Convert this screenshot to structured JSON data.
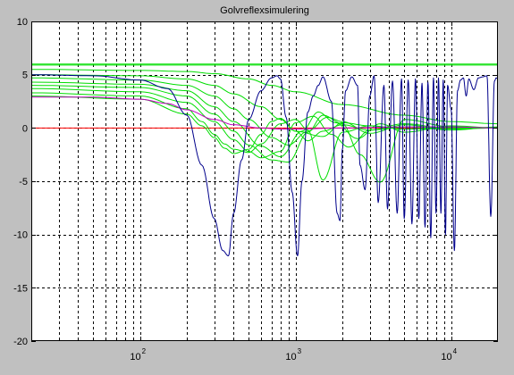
{
  "chart_data": {
    "type": "line",
    "title": "Golvreflexsimulering",
    "xlabel": "",
    "ylabel": "",
    "xscale": "log",
    "xlim": [
      20,
      20000
    ],
    "ylim": [
      -20,
      10
    ],
    "grid": true,
    "background_color": "#c0c0c0",
    "plot_background_color": "#ffffff",
    "x_tick_labels": [
      {
        "base": "10",
        "exp": "2",
        "value": 100
      },
      {
        "base": "10",
        "exp": "3",
        "value": 1000
      },
      {
        "base": "10",
        "exp": "4",
        "value": 10000
      }
    ],
    "y_ticks": [
      10,
      5,
      0,
      -5,
      -10,
      -15,
      -20
    ],
    "y_tick_labels": [
      "10",
      "5",
      "0",
      "-5",
      "-10",
      "-15",
      "-20"
    ],
    "reference_line": {
      "color": "#ff0000",
      "x": [
        20,
        20000
      ],
      "y": [
        0,
        0
      ]
    },
    "series": [
      {
        "color": "#00dd00",
        "style": "flat",
        "x": [
          20,
          20000
        ],
        "y": [
          6.0,
          6.0
        ]
      },
      {
        "color": "#00dd00",
        "style": "flat",
        "x": [
          20,
          20000
        ],
        "y": [
          5.9,
          5.9
        ]
      },
      {
        "color": "#00dd00",
        "style": "comb",
        "x": [
          20,
          100,
          200,
          300,
          500,
          700,
          1000,
          2000,
          5000,
          10000,
          20000
        ],
        "y": [
          5.5,
          5.4,
          5.3,
          5.1,
          4.6,
          4.0,
          3.4,
          2.2,
          1.2,
          0.6,
          0.4
        ]
      },
      {
        "color": "#00dd00",
        "style": "comb",
        "x": [
          20,
          100,
          200,
          300,
          400,
          600,
          800,
          1000,
          1500,
          2000,
          3000,
          5000,
          10000,
          20000
        ],
        "y": [
          5.0,
          4.9,
          4.6,
          4.0,
          3.2,
          2.0,
          0.8,
          -0.3,
          -0.8,
          0.5,
          0.2,
          -0.1,
          0.1,
          0.0
        ]
      },
      {
        "color": "#00dd00",
        "style": "comb",
        "x": [
          20,
          100,
          200,
          300,
          400,
          500,
          700,
          900,
          1200,
          1600,
          2000,
          3000,
          5000,
          10000,
          20000
        ],
        "y": [
          4.7,
          4.5,
          4.0,
          3.0,
          1.8,
          0.8,
          -0.9,
          -1.6,
          -0.3,
          1.0,
          0.6,
          -0.5,
          0.3,
          -0.2,
          0.1
        ]
      },
      {
        "color": "#00dd00",
        "style": "comb",
        "x": [
          20,
          100,
          200,
          300,
          400,
          600,
          800,
          1100,
          1400,
          1800,
          2500,
          3500,
          5000,
          10000,
          20000
        ],
        "y": [
          4.3,
          4.1,
          3.5,
          2.0,
          0.6,
          -1.7,
          -2.7,
          -0.3,
          1.5,
          0.5,
          -1.0,
          0.4,
          -0.4,
          0.2,
          0.0
        ]
      },
      {
        "color": "#00dd00",
        "style": "comb",
        "x": [
          20,
          100,
          200,
          300,
          400,
          500,
          700,
          900,
          1200,
          1500,
          2000,
          2600,
          3500,
          5000,
          10000,
          20000
        ],
        "y": [
          4.0,
          3.8,
          3.0,
          1.3,
          -0.3,
          -1.6,
          -3.0,
          -3.2,
          -0.4,
          1.2,
          0.4,
          -2.5,
          -5.1,
          0.8,
          0.1,
          0.0
        ]
      },
      {
        "color": "#00dd00",
        "style": "comb",
        "x": [
          20,
          100,
          200,
          300,
          400,
          500,
          600,
          800,
          1000,
          1300,
          1700,
          2200,
          3000,
          5000,
          10000,
          20000
        ],
        "y": [
          3.7,
          3.4,
          2.4,
          0.6,
          -1.1,
          -2.2,
          -2.8,
          -2.2,
          0.5,
          1.1,
          -0.6,
          -1.8,
          -0.2,
          0.4,
          -0.1,
          0.0
        ]
      },
      {
        "color": "#00dd00",
        "style": "comb",
        "x": [
          20,
          100,
          200,
          250,
          300,
          350,
          400,
          500,
          600,
          800,
          1000,
          1200,
          1500,
          2000,
          3000,
          5000,
          20000
        ],
        "y": [
          3.3,
          3.0,
          1.8,
          0.6,
          -0.6,
          -1.5,
          -2.0,
          -2.3,
          -1.5,
          0.4,
          0.8,
          -0.2,
          -4.9,
          -0.4,
          0.2,
          -0.1,
          0.0
        ]
      },
      {
        "color": "#00dd00",
        "style": "comb",
        "x": [
          20,
          100,
          200,
          250,
          300,
          350,
          400,
          500,
          600,
          700,
          800,
          1000,
          1200,
          1500,
          2000,
          3000,
          5000,
          20000
        ],
        "y": [
          3.0,
          2.7,
          1.3,
          0.2,
          -0.9,
          -1.9,
          -2.4,
          -2.0,
          -0.6,
          0.6,
          0.9,
          -0.3,
          -1.2,
          -0.3,
          0.3,
          -0.2,
          0.1,
          0.0
        ]
      },
      {
        "color": "#c000c0",
        "style": "smooth",
        "x": [
          20,
          50,
          100,
          150,
          200,
          300,
          400,
          600,
          800,
          1000,
          2000,
          5000,
          10000,
          20000
        ],
        "y": [
          2.9,
          2.9,
          2.7,
          2.3,
          1.7,
          0.8,
          0.3,
          0.0,
          -0.1,
          -0.1,
          0.0,
          0.1,
          0.1,
          0.0
        ]
      },
      {
        "color": "#00008b",
        "style": "comb",
        "x": [
          20,
          50,
          100,
          150,
          200,
          250,
          300,
          340,
          370,
          400,
          450,
          500,
          600,
          700,
          760,
          800,
          870,
          950,
          1030,
          1100,
          1200,
          1300,
          1400,
          1500,
          1700,
          1850,
          1930,
          2000,
          2100,
          2300,
          2500,
          2600,
          2800,
          3000,
          3200,
          3400,
          3700,
          3900,
          4200,
          4500,
          4800,
          5000,
          5300,
          5600,
          5900,
          6200,
          6500,
          6800,
          7100,
          7400,
          7700,
          8000,
          8300,
          8600,
          8900,
          9200,
          9500,
          10000,
          10500,
          11000,
          11500,
          12000,
          12500,
          13000,
          14000,
          15000,
          16000,
          17000,
          18000,
          19000,
          19500,
          20000
        ],
        "y": [
          5.0,
          4.9,
          4.5,
          3.7,
          1.2,
          -3.5,
          -8.5,
          -11.5,
          -12.0,
          -8.0,
          -3.0,
          0.8,
          3.5,
          4.7,
          4.9,
          4.6,
          1.0,
          -6.0,
          -12.0,
          -5.0,
          1.5,
          3.0,
          4.0,
          4.8,
          2.5,
          -8.0,
          -8.7,
          -2.0,
          3.5,
          4.8,
          4.0,
          -3.5,
          -5.8,
          3.0,
          4.9,
          -7.0,
          4.0,
          -7.6,
          4.4,
          -8.0,
          4.6,
          -8.5,
          4.5,
          -9.0,
          4.6,
          -8.5,
          4.2,
          -9.3,
          4.3,
          -10.3,
          4.7,
          -8.0,
          4.7,
          -8.0,
          4.5,
          -10.0,
          4.0,
          1.8,
          -11.5,
          3.5,
          4.5,
          4.7,
          3.0,
          4.6,
          3.6,
          4.7,
          4.8,
          4.9,
          -8.3,
          4.4,
          4.7,
          4.6
        ]
      }
    ]
  }
}
